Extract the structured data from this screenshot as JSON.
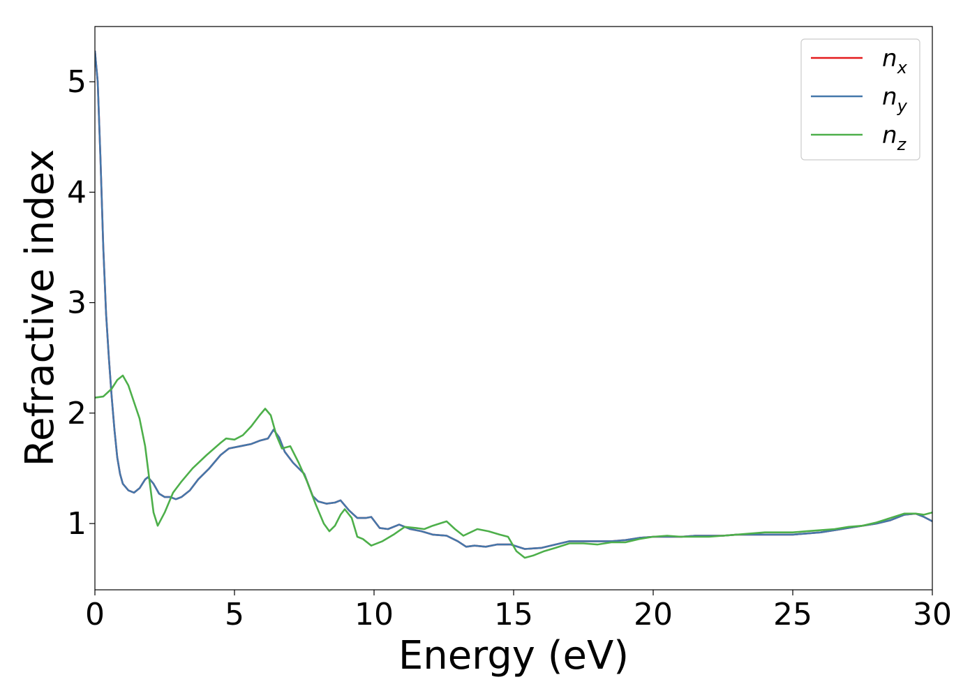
{
  "chart_data": {
    "type": "line",
    "title": "",
    "xlabel": "Energy (eV)",
    "ylabel": "Refractive index",
    "xlim": [
      0,
      30
    ],
    "ylim": [
      0.4,
      5.5
    ],
    "xticks": [
      0,
      5,
      10,
      15,
      20,
      25,
      30
    ],
    "yticks": [
      1,
      2,
      3,
      4,
      5
    ],
    "grid": false,
    "legend_position": "top-right",
    "series": [
      {
        "name": "n_x",
        "label_main": "n",
        "label_sub": "x",
        "color": "#e41a1c",
        "points": [
          [
            0,
            5.28
          ],
          [
            0.1,
            5.0
          ],
          [
            0.2,
            4.3
          ],
          [
            0.3,
            3.5
          ],
          [
            0.4,
            2.9
          ],
          [
            0.5,
            2.5
          ],
          [
            0.6,
            2.15
          ],
          [
            0.7,
            1.85
          ],
          [
            0.8,
            1.6
          ],
          [
            0.9,
            1.45
          ],
          [
            1.0,
            1.36
          ],
          [
            1.2,
            1.3
          ],
          [
            1.4,
            1.28
          ],
          [
            1.6,
            1.32
          ],
          [
            1.8,
            1.4
          ],
          [
            1.9,
            1.42
          ],
          [
            2.1,
            1.36
          ],
          [
            2.3,
            1.27
          ],
          [
            2.5,
            1.24
          ],
          [
            2.7,
            1.24
          ],
          [
            2.9,
            1.22
          ],
          [
            3.1,
            1.24
          ],
          [
            3.4,
            1.3
          ],
          [
            3.7,
            1.4
          ],
          [
            4.1,
            1.5
          ],
          [
            4.5,
            1.62
          ],
          [
            4.8,
            1.68
          ],
          [
            5.2,
            1.7
          ],
          [
            5.6,
            1.72
          ],
          [
            5.9,
            1.75
          ],
          [
            6.2,
            1.77
          ],
          [
            6.4,
            1.85
          ],
          [
            6.6,
            1.78
          ],
          [
            6.8,
            1.65
          ],
          [
            7.1,
            1.55
          ],
          [
            7.5,
            1.45
          ],
          [
            7.8,
            1.25
          ],
          [
            8.0,
            1.2
          ],
          [
            8.3,
            1.18
          ],
          [
            8.6,
            1.19
          ],
          [
            8.8,
            1.21
          ],
          [
            9.1,
            1.12
          ],
          [
            9.4,
            1.05
          ],
          [
            9.7,
            1.05
          ],
          [
            9.9,
            1.06
          ],
          [
            10.2,
            0.96
          ],
          [
            10.5,
            0.95
          ],
          [
            10.9,
            0.99
          ],
          [
            11.3,
            0.95
          ],
          [
            11.7,
            0.93
          ],
          [
            12.1,
            0.9
          ],
          [
            12.6,
            0.89
          ],
          [
            13.0,
            0.84
          ],
          [
            13.3,
            0.79
          ],
          [
            13.6,
            0.8
          ],
          [
            14.0,
            0.79
          ],
          [
            14.4,
            0.81
          ],
          [
            14.9,
            0.81
          ],
          [
            15.4,
            0.77
          ],
          [
            16.0,
            0.78
          ],
          [
            16.5,
            0.81
          ],
          [
            17.0,
            0.84
          ],
          [
            17.5,
            0.84
          ],
          [
            18.0,
            0.84
          ],
          [
            18.5,
            0.84
          ],
          [
            19.0,
            0.85
          ],
          [
            19.5,
            0.87
          ],
          [
            20.0,
            0.88
          ],
          [
            20.5,
            0.88
          ],
          [
            21.0,
            0.88
          ],
          [
            21.5,
            0.89
          ],
          [
            22.0,
            0.89
          ],
          [
            22.5,
            0.89
          ],
          [
            23.0,
            0.9
          ],
          [
            23.5,
            0.9
          ],
          [
            24.0,
            0.9
          ],
          [
            24.5,
            0.9
          ],
          [
            25.0,
            0.9
          ],
          [
            25.5,
            0.91
          ],
          [
            26.0,
            0.92
          ],
          [
            26.5,
            0.94
          ],
          [
            27.0,
            0.96
          ],
          [
            27.5,
            0.98
          ],
          [
            28.0,
            1.0
          ],
          [
            28.5,
            1.03
          ],
          [
            29.0,
            1.08
          ],
          [
            29.4,
            1.09
          ],
          [
            29.7,
            1.06
          ],
          [
            30.0,
            1.02
          ]
        ]
      },
      {
        "name": "n_y",
        "label_main": "n",
        "label_sub": "y",
        "color": "#4477aa",
        "points": [
          [
            0,
            5.28
          ],
          [
            0.1,
            5.0
          ],
          [
            0.2,
            4.3
          ],
          [
            0.3,
            3.5
          ],
          [
            0.4,
            2.9
          ],
          [
            0.5,
            2.5
          ],
          [
            0.6,
            2.15
          ],
          [
            0.7,
            1.85
          ],
          [
            0.8,
            1.6
          ],
          [
            0.9,
            1.45
          ],
          [
            1.0,
            1.36
          ],
          [
            1.2,
            1.3
          ],
          [
            1.4,
            1.28
          ],
          [
            1.6,
            1.32
          ],
          [
            1.8,
            1.4
          ],
          [
            1.9,
            1.42
          ],
          [
            2.1,
            1.36
          ],
          [
            2.3,
            1.27
          ],
          [
            2.5,
            1.24
          ],
          [
            2.7,
            1.24
          ],
          [
            2.9,
            1.22
          ],
          [
            3.1,
            1.24
          ],
          [
            3.4,
            1.3
          ],
          [
            3.7,
            1.4
          ],
          [
            4.1,
            1.5
          ],
          [
            4.5,
            1.62
          ],
          [
            4.8,
            1.68
          ],
          [
            5.2,
            1.7
          ],
          [
            5.6,
            1.72
          ],
          [
            5.9,
            1.75
          ],
          [
            6.2,
            1.77
          ],
          [
            6.4,
            1.85
          ],
          [
            6.6,
            1.78
          ],
          [
            6.8,
            1.65
          ],
          [
            7.1,
            1.55
          ],
          [
            7.5,
            1.45
          ],
          [
            7.8,
            1.25
          ],
          [
            8.0,
            1.2
          ],
          [
            8.3,
            1.18
          ],
          [
            8.6,
            1.19
          ],
          [
            8.8,
            1.21
          ],
          [
            9.1,
            1.12
          ],
          [
            9.4,
            1.05
          ],
          [
            9.7,
            1.05
          ],
          [
            9.9,
            1.06
          ],
          [
            10.2,
            0.96
          ],
          [
            10.5,
            0.95
          ],
          [
            10.9,
            0.99
          ],
          [
            11.3,
            0.95
          ],
          [
            11.7,
            0.93
          ],
          [
            12.1,
            0.9
          ],
          [
            12.6,
            0.89
          ],
          [
            13.0,
            0.84
          ],
          [
            13.3,
            0.79
          ],
          [
            13.6,
            0.8
          ],
          [
            14.0,
            0.79
          ],
          [
            14.4,
            0.81
          ],
          [
            14.9,
            0.81
          ],
          [
            15.4,
            0.77
          ],
          [
            16.0,
            0.78
          ],
          [
            16.5,
            0.81
          ],
          [
            17.0,
            0.84
          ],
          [
            17.5,
            0.84
          ],
          [
            18.0,
            0.84
          ],
          [
            18.5,
            0.84
          ],
          [
            19.0,
            0.85
          ],
          [
            19.5,
            0.87
          ],
          [
            20.0,
            0.88
          ],
          [
            20.5,
            0.88
          ],
          [
            21.0,
            0.88
          ],
          [
            21.5,
            0.89
          ],
          [
            22.0,
            0.89
          ],
          [
            22.5,
            0.89
          ],
          [
            23.0,
            0.9
          ],
          [
            23.5,
            0.9
          ],
          [
            24.0,
            0.9
          ],
          [
            24.5,
            0.9
          ],
          [
            25.0,
            0.9
          ],
          [
            25.5,
            0.91
          ],
          [
            26.0,
            0.92
          ],
          [
            26.5,
            0.94
          ],
          [
            27.0,
            0.96
          ],
          [
            27.5,
            0.98
          ],
          [
            28.0,
            1.0
          ],
          [
            28.5,
            1.03
          ],
          [
            29.0,
            1.08
          ],
          [
            29.4,
            1.09
          ],
          [
            29.7,
            1.06
          ],
          [
            30.0,
            1.02
          ]
        ]
      },
      {
        "name": "n_z",
        "label_main": "n",
        "label_sub": "z",
        "color": "#4daf4a",
        "points": [
          [
            0,
            2.14
          ],
          [
            0.3,
            2.15
          ],
          [
            0.6,
            2.22
          ],
          [
            0.8,
            2.3
          ],
          [
            1.0,
            2.34
          ],
          [
            1.2,
            2.25
          ],
          [
            1.4,
            2.1
          ],
          [
            1.6,
            1.95
          ],
          [
            1.8,
            1.7
          ],
          [
            1.95,
            1.4
          ],
          [
            2.1,
            1.1
          ],
          [
            2.25,
            0.98
          ],
          [
            2.5,
            1.1
          ],
          [
            2.8,
            1.28
          ],
          [
            3.1,
            1.38
          ],
          [
            3.5,
            1.5
          ],
          [
            4.0,
            1.62
          ],
          [
            4.5,
            1.73
          ],
          [
            4.7,
            1.77
          ],
          [
            5.0,
            1.76
          ],
          [
            5.3,
            1.8
          ],
          [
            5.6,
            1.88
          ],
          [
            5.9,
            1.98
          ],
          [
            6.1,
            2.04
          ],
          [
            6.3,
            1.98
          ],
          [
            6.5,
            1.8
          ],
          [
            6.7,
            1.68
          ],
          [
            7.0,
            1.7
          ],
          [
            7.3,
            1.55
          ],
          [
            7.6,
            1.38
          ],
          [
            7.9,
            1.18
          ],
          [
            8.2,
            1.0
          ],
          [
            8.4,
            0.93
          ],
          [
            8.6,
            0.98
          ],
          [
            8.8,
            1.08
          ],
          [
            8.95,
            1.13
          ],
          [
            9.2,
            1.05
          ],
          [
            9.4,
            0.88
          ],
          [
            9.6,
            0.86
          ],
          [
            9.9,
            0.8
          ],
          [
            10.3,
            0.84
          ],
          [
            10.7,
            0.9
          ],
          [
            11.1,
            0.97
          ],
          [
            11.5,
            0.96
          ],
          [
            11.8,
            0.95
          ],
          [
            12.1,
            0.98
          ],
          [
            12.6,
            1.02
          ],
          [
            12.9,
            0.95
          ],
          [
            13.2,
            0.89
          ],
          [
            13.7,
            0.95
          ],
          [
            14.1,
            0.93
          ],
          [
            14.5,
            0.9
          ],
          [
            14.8,
            0.88
          ],
          [
            15.1,
            0.75
          ],
          [
            15.4,
            0.69
          ],
          [
            15.7,
            0.71
          ],
          [
            16.1,
            0.75
          ],
          [
            16.5,
            0.78
          ],
          [
            17.0,
            0.82
          ],
          [
            17.5,
            0.82
          ],
          [
            18.0,
            0.81
          ],
          [
            18.5,
            0.83
          ],
          [
            19.0,
            0.83
          ],
          [
            19.5,
            0.86
          ],
          [
            20.0,
            0.88
          ],
          [
            20.5,
            0.89
          ],
          [
            21.0,
            0.88
          ],
          [
            21.5,
            0.88
          ],
          [
            22.0,
            0.88
          ],
          [
            22.5,
            0.89
          ],
          [
            23.0,
            0.9
          ],
          [
            23.5,
            0.91
          ],
          [
            24.0,
            0.92
          ],
          [
            24.5,
            0.92
          ],
          [
            25.0,
            0.92
          ],
          [
            25.5,
            0.93
          ],
          [
            26.0,
            0.94
          ],
          [
            26.5,
            0.95
          ],
          [
            27.0,
            0.97
          ],
          [
            27.5,
            0.98
          ],
          [
            28.0,
            1.01
          ],
          [
            28.5,
            1.05
          ],
          [
            29.0,
            1.09
          ],
          [
            29.4,
            1.09
          ],
          [
            29.7,
            1.08
          ],
          [
            30.0,
            1.1
          ]
        ]
      }
    ]
  }
}
